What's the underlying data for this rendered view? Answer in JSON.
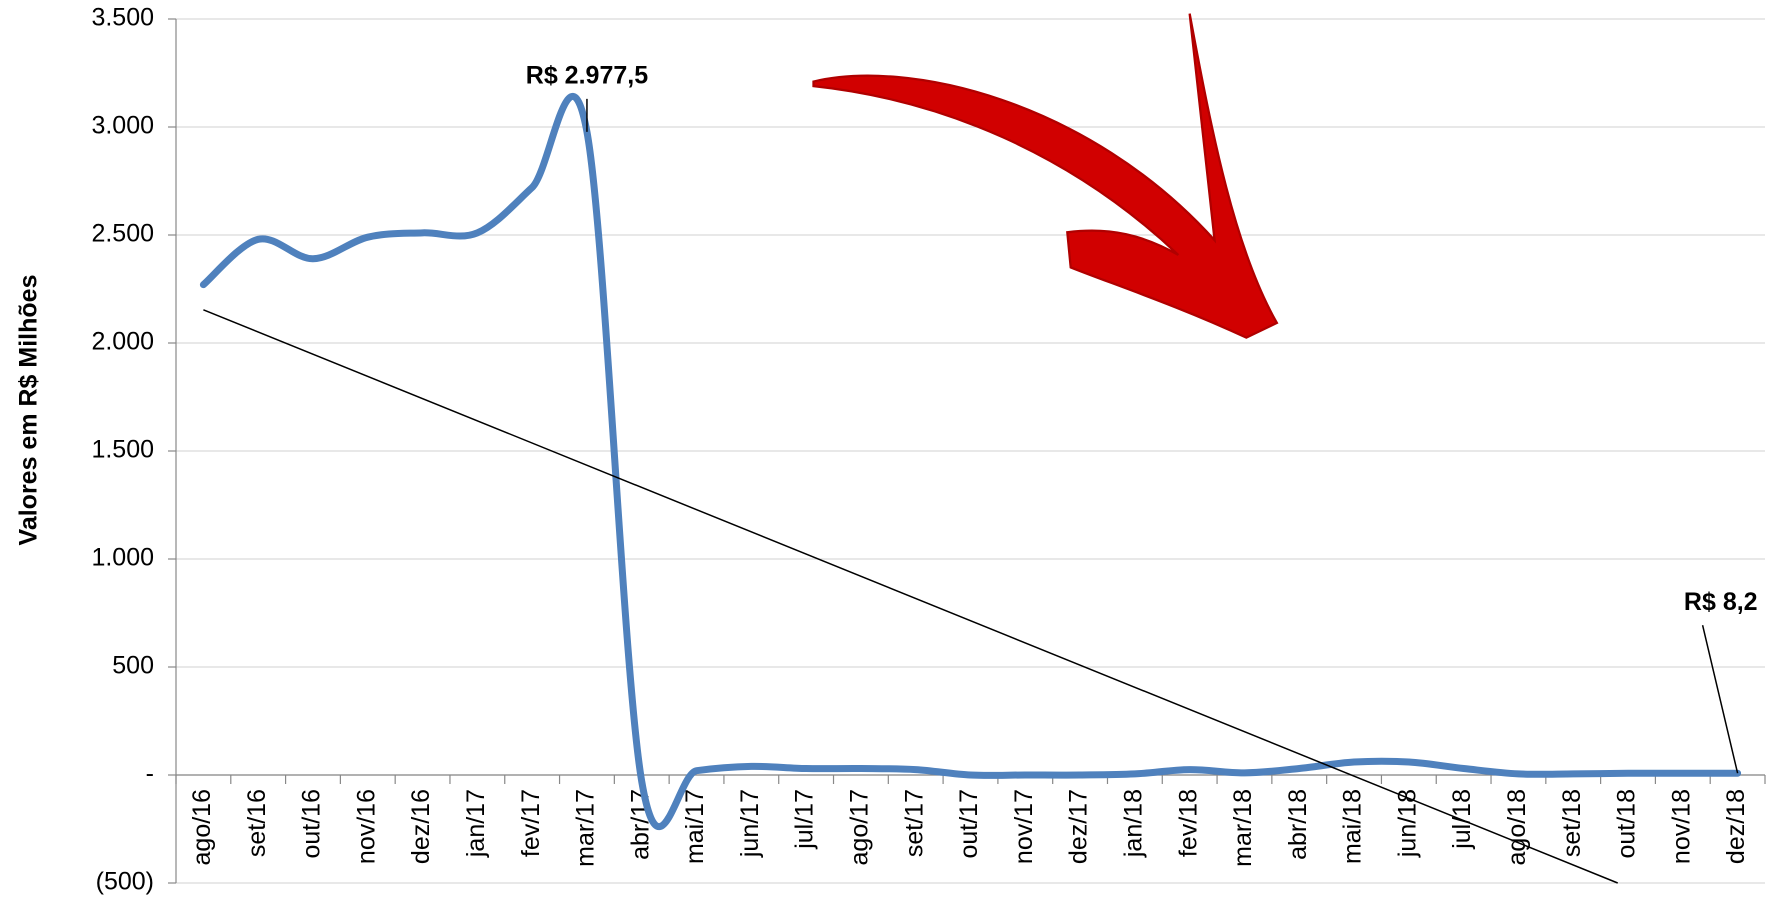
{
  "chart_data": {
    "type": "line",
    "y_label": "Valores em R$ Milhões",
    "categories": [
      "ago/16",
      "set/16",
      "out/16",
      "nov/16",
      "dez/16",
      "jan/17",
      "fev/17",
      "mar/17",
      "abr/17",
      "mai/17",
      "jun/17",
      "jul/17",
      "ago/17",
      "set/17",
      "out/17",
      "nov/17",
      "dez/17",
      "jan/18",
      "fev/18",
      "mar/18",
      "abr/18",
      "mai/18",
      "jun/18",
      "jul/18",
      "ago/18",
      "set/18",
      "out/18",
      "nov/18",
      "dez/18"
    ],
    "series": [
      {
        "color": "#4f81bd",
        "values": [
          2270,
          2480,
          2390,
          2490,
          2510,
          2510,
          2720,
          2977.5,
          -30,
          20,
          40,
          30,
          30,
          25,
          0,
          0,
          0,
          5,
          25,
          10,
          30,
          60,
          60,
          30,
          5,
          5,
          8,
          8,
          8.2
        ],
        "value_labels": [
          null,
          null,
          null,
          null,
          null,
          null,
          null,
          "R$ 2.977,5",
          null,
          null,
          null,
          null,
          null,
          null,
          null,
          null,
          null,
          null,
          null,
          null,
          null,
          null,
          null,
          null,
          null,
          null,
          null,
          null,
          "R$ 8,2"
        ]
      }
    ],
    "ylim": [
      -500,
      3500
    ],
    "yticks": [
      {
        "value": -500,
        "label": "(500)"
      },
      {
        "value": 0,
        "label": "-"
      },
      500,
      {
        "value": 1000,
        "label": "1.000"
      },
      {
        "value": 1500,
        "label": "1.500"
      },
      {
        "value": 2000,
        "label": "2.000"
      },
      {
        "value": 2500,
        "label": "2.500"
      },
      {
        "value": 3000,
        "label": "3.000"
      },
      {
        "value": 3500,
        "label": "3.500"
      }
    ],
    "grid": true,
    "trendline": true,
    "smooth": true
  }
}
